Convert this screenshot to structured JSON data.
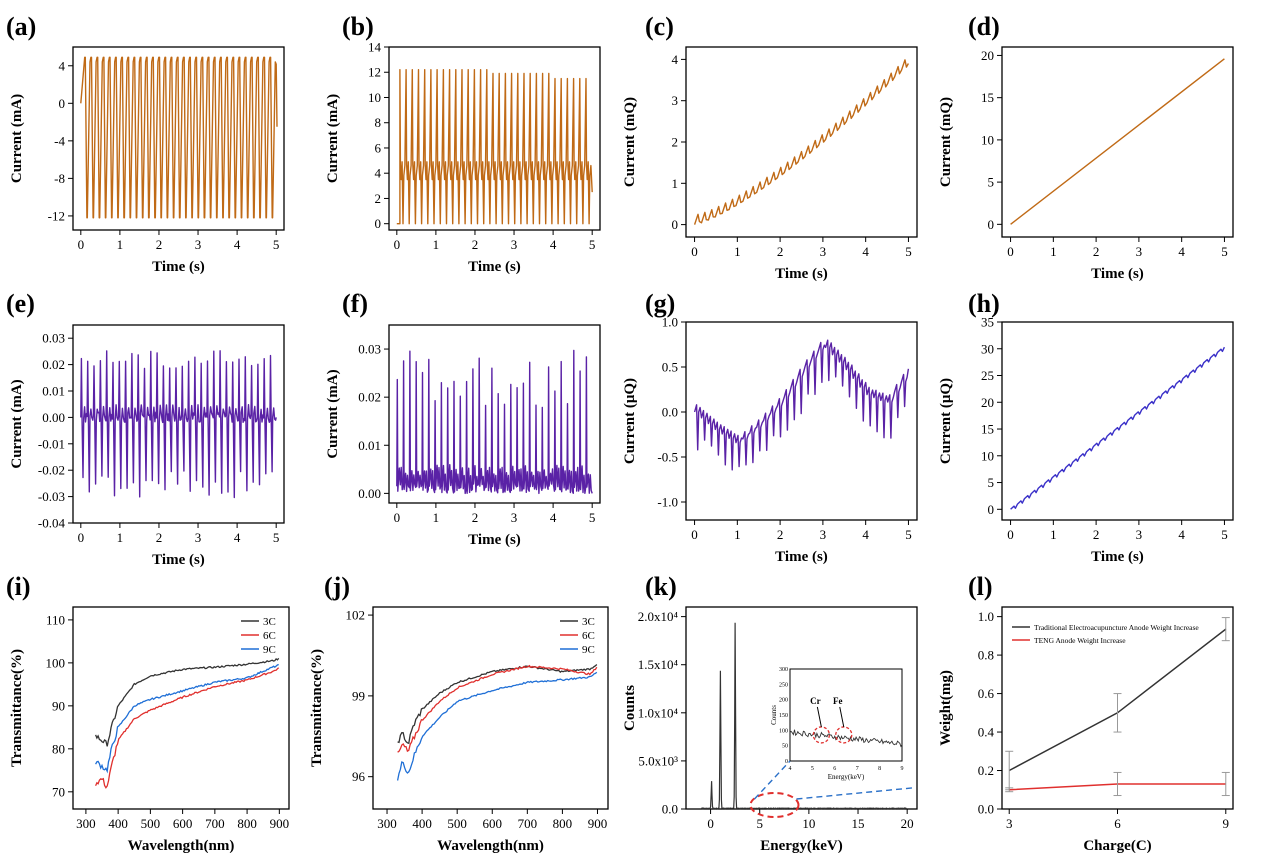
{
  "chart_data": [
    {
      "panel": "(a)",
      "type": "line",
      "style": "oscillation",
      "color": "#c06a16",
      "xlabel": "Time (s)",
      "ylabel": "Current (mA)",
      "xlim": [
        -0.2,
        5.2
      ],
      "ylim": [
        -13.5,
        6
      ],
      "xticks": [
        0,
        1,
        2,
        3,
        4,
        5
      ],
      "xtick_labels": [
        "0",
        "1",
        "2",
        "3",
        "4",
        "5"
      ],
      "yticks": [
        4,
        0,
        -4,
        -8,
        -12
      ],
      "ytick_labels": [
        "4",
        "0",
        "-4",
        "-8",
        "-12"
      ],
      "params": {
        "cycles": 31,
        "high": 4.9,
        "low": -12.2,
        "start": 0,
        "end": 5
      }
    },
    {
      "panel": "(b)",
      "type": "line",
      "style": "pulses",
      "color": "#c06a16",
      "xlabel": "Time (s)",
      "ylabel": "Current (mA)",
      "xlim": [
        -0.2,
        5.2
      ],
      "ylim": [
        -0.5,
        14
      ],
      "xticks": [
        0,
        1,
        2,
        3,
        4,
        5
      ],
      "xtick_labels": [
        "0",
        "1",
        "2",
        "3",
        "4",
        "5"
      ],
      "yticks": [
        0,
        2,
        4,
        6,
        8,
        10,
        12,
        14
      ],
      "ytick_labels": [
        "0",
        "2",
        "4",
        "6",
        "8",
        "10",
        "12",
        "14"
      ],
      "params": {
        "cycles": 31,
        "peak": 12.2,
        "base": 0,
        "mid": 4.3,
        "start": 0,
        "end": 5
      }
    },
    {
      "panel": "(c)",
      "type": "line",
      "style": "stair",
      "color": "#c06a16",
      "xlabel": "Time (s)",
      "ylabel": "Current (mQ)",
      "xlim": [
        -0.2,
        5.2
      ],
      "ylim": [
        -0.3,
        4.3
      ],
      "xticks": [
        0,
        1,
        2,
        3,
        4,
        5
      ],
      "xtick_labels": [
        "0",
        "1",
        "2",
        "3",
        "4",
        "5"
      ],
      "yticks": [
        0,
        1,
        2,
        3,
        4
      ],
      "ytick_labels": [
        "0",
        "1",
        "2",
        "3",
        "4"
      ],
      "params": {
        "cycles": 31,
        "start_value": 0,
        "end_value": 3.9,
        "ripple": 0.25,
        "curve": 1.3
      }
    },
    {
      "panel": "(d)",
      "type": "line",
      "style": "linear",
      "color": "#c06a16",
      "xlabel": "Time (s)",
      "ylabel": "Current (mQ)",
      "xlim": [
        -0.2,
        5.2
      ],
      "ylim": [
        -1.5,
        21
      ],
      "xticks": [
        0,
        1,
        2,
        3,
        4,
        5
      ],
      "xtick_labels": [
        "0",
        "1",
        "2",
        "3",
        "4",
        "5"
      ],
      "yticks": [
        0,
        5,
        10,
        15,
        20
      ],
      "ytick_labels": [
        "0",
        "5",
        "10",
        "15",
        "20"
      ],
      "params": {
        "start_value": 0,
        "end_value": 19.6
      }
    },
    {
      "panel": "(e)",
      "type": "line",
      "style": "spikes",
      "color": "#5a22a6",
      "xlabel": "Time (s)",
      "ylabel": "Current (mA)",
      "xlim": [
        -0.2,
        5.2
      ],
      "ylim": [
        -0.04,
        0.035
      ],
      "xticks": [
        0,
        1,
        2,
        3,
        4,
        5
      ],
      "xtick_labels": [
        "0",
        "1",
        "2",
        "3",
        "4",
        "5"
      ],
      "yticks": [
        0.03,
        0.02,
        0.01,
        0,
        -0.01,
        -0.02,
        -0.03,
        -0.04
      ],
      "ytick_labels": [
        "0.03",
        "0.02",
        "0.01",
        "0.00",
        "-0.01",
        "-0.02",
        "-0.03",
        "-0.04"
      ],
      "params": {
        "cycles": 31,
        "peak": 0.023,
        "trough": -0.029,
        "noise": 0.002
      }
    },
    {
      "panel": "(f)",
      "type": "line",
      "style": "peaks",
      "color": "#5a22a6",
      "xlabel": "Time (s)",
      "ylabel": "Current (mA)",
      "xlim": [
        -0.2,
        5.2
      ],
      "ylim": [
        -0.002,
        0.035
      ],
      "xticks": [
        0,
        1,
        2,
        3,
        4,
        5
      ],
      "xtick_labels": [
        "0",
        "1",
        "2",
        "3",
        "4",
        "5"
      ],
      "yticks": [
        0,
        0.01,
        0.02,
        0.03
      ],
      "ytick_labels": [
        "0.00",
        "0.01",
        "0.02",
        "0.03"
      ],
      "params": {
        "cycles": 31,
        "peak": 0.025,
        "noise": 0.002
      }
    },
    {
      "panel": "(g)",
      "type": "line",
      "style": "wander",
      "color": "#5a22a6",
      "xlabel": "Time (s)",
      "ylabel": "Current (μQ)",
      "xlim": [
        -0.2,
        5.2
      ],
      "ylim": [
        -1.2,
        1.0
      ],
      "xticks": [
        0,
        1,
        2,
        3,
        4,
        5
      ],
      "xtick_labels": [
        "0",
        "1",
        "2",
        "3",
        "4",
        "5"
      ],
      "yticks": [
        1.0,
        0.5,
        0,
        -0.5,
        -1.0
      ],
      "ytick_labels": [
        "1.0",
        "0.5",
        "0.0",
        "-0.5",
        "-1.0"
      ],
      "params": {
        "cycles": 31,
        "ripple": 0.35,
        "baseline_t": [
          0,
          0.5,
          1.0,
          1.5,
          2.0,
          2.5,
          3.0,
          3.5,
          4.0,
          4.5,
          5.0
        ],
        "baseline_v": [
          0.0,
          -0.2,
          -0.35,
          -0.15,
          0.1,
          0.45,
          0.75,
          0.5,
          0.2,
          0.1,
          0.45
        ]
      }
    },
    {
      "panel": "(h)",
      "type": "line",
      "style": "stair",
      "color": "#3a30c8",
      "xlabel": "Time (s)",
      "ylabel": "Current (μQ)",
      "xlim": [
        -0.2,
        5.2
      ],
      "ylim": [
        -2,
        35
      ],
      "xticks": [
        0,
        1,
        2,
        3,
        4,
        5
      ],
      "xtick_labels": [
        "0",
        "1",
        "2",
        "3",
        "4",
        "5"
      ],
      "yticks": [
        0,
        5,
        10,
        15,
        20,
        25,
        30,
        35
      ],
      "ytick_labels": [
        "0",
        "5",
        "10",
        "15",
        "20",
        "25",
        "30",
        "35"
      ],
      "params": {
        "cycles": 31,
        "start_value": 0,
        "end_value": 30.3,
        "ripple": 0.6,
        "curve": 1.0
      }
    },
    {
      "panel": "(i)",
      "type": "line",
      "style": "spectra",
      "xlabel": "Wavelength(nm)",
      "ylabel": "Transmittance(%)",
      "xlim": [
        260,
        930
      ],
      "ylim": [
        66,
        113
      ],
      "xticks": [
        300,
        400,
        500,
        600,
        700,
        800,
        900
      ],
      "xtick_labels": [
        "300",
        "400",
        "500",
        "600",
        "700",
        "800",
        "900"
      ],
      "yticks": [
        70,
        80,
        90,
        100,
        110
      ],
      "ytick_labels": [
        "70",
        "80",
        "90",
        "100",
        "110"
      ],
      "legend": [
        "3C",
        "6C",
        "9C"
      ],
      "series": [
        {
          "name": "3C",
          "color": "#333333",
          "x": [
            330,
            350,
            365,
            380,
            400,
            450,
            500,
            600,
            700,
            800,
            880,
            900
          ],
          "y": [
            83,
            82,
            81,
            85,
            90,
            95,
            97,
            98.5,
            99,
            99.7,
            100.5,
            101
          ]
        },
        {
          "name": "6C",
          "color": "#e0302e",
          "x": [
            330,
            350,
            365,
            380,
            400,
            450,
            500,
            600,
            700,
            800,
            880,
            900
          ],
          "y": [
            72,
            73,
            71,
            76,
            82,
            87,
            89,
            92,
            94.5,
            96,
            98,
            98.8
          ]
        },
        {
          "name": "9C",
          "color": "#1f6fd6",
          "x": [
            330,
            350,
            365,
            380,
            400,
            450,
            500,
            600,
            700,
            800,
            880,
            900
          ],
          "y": [
            77,
            76,
            75,
            80,
            85,
            90,
            91.5,
            93.5,
            95.5,
            96.5,
            99,
            99.5
          ]
        }
      ]
    },
    {
      "panel": "(j)",
      "type": "line",
      "style": "spectra",
      "xlabel": "Wavelength(nm)",
      "ylabel": "Transmittance(%)",
      "xlim": [
        260,
        930
      ],
      "ylim": [
        94.8,
        102.3
      ],
      "xticks": [
        300,
        400,
        500,
        600,
        700,
        800,
        900
      ],
      "xtick_labels": [
        "300",
        "400",
        "500",
        "600",
        "700",
        "800",
        "900"
      ],
      "yticks": [
        96,
        99,
        102
      ],
      "ytick_labels": [
        "96",
        "99",
        "102"
      ],
      "legend": [
        "3C",
        "6C",
        "9C"
      ],
      "series": [
        {
          "name": "3C",
          "color": "#333333",
          "x": [
            330,
            345,
            360,
            375,
            400,
            450,
            500,
            600,
            700,
            800,
            880,
            900
          ],
          "y": [
            97.3,
            97.6,
            97.2,
            97.9,
            98.5,
            99.1,
            99.5,
            99.9,
            100.1,
            99.9,
            100.0,
            100.2
          ]
        },
        {
          "name": "6C",
          "color": "#e0302e",
          "x": [
            330,
            345,
            360,
            375,
            400,
            450,
            500,
            600,
            700,
            800,
            880,
            900
          ],
          "y": [
            96.8,
            97.2,
            96.9,
            97.4,
            98.1,
            98.8,
            99.3,
            99.8,
            100.1,
            100.0,
            99.8,
            100.1
          ]
        },
        {
          "name": "9C",
          "color": "#1f6fd6",
          "x": [
            330,
            345,
            360,
            375,
            400,
            450,
            500,
            600,
            700,
            800,
            880,
            900
          ],
          "y": [
            95.9,
            96.6,
            96.1,
            96.7,
            97.5,
            98.2,
            98.8,
            99.2,
            99.5,
            99.6,
            99.7,
            99.9
          ]
        }
      ]
    },
    {
      "panel": "(k)",
      "type": "line",
      "style": "eds",
      "color": "#333333",
      "xlabel": "Energy(keV)",
      "ylabel": "Counts",
      "xlim": [
        -2.5,
        21
      ],
      "ylim": [
        0,
        21000
      ],
      "xticks": [
        0,
        5,
        10,
        15,
        20
      ],
      "xtick_labels": [
        "0",
        "5",
        "10",
        "15",
        "20"
      ],
      "yticks": [
        0,
        5000,
        10000,
        15000,
        20000
      ],
      "ytick_labels": [
        "0.0",
        "5.0x10³",
        "1.0x10⁴",
        "1.5x10⁴",
        "2.0x10⁴"
      ],
      "peaks": [
        {
          "energy": 0.1,
          "counts": 2800
        },
        {
          "energy": 1.0,
          "counts": 14300
        },
        {
          "energy": 2.5,
          "counts": 19300
        }
      ],
      "inset": {
        "xlabel": "Energy(keV)",
        "ylabel": "Counts",
        "xlim": [
          4,
          9
        ],
        "ylim": [
          0,
          300
        ],
        "xticks": [
          4,
          5,
          6,
          7,
          8,
          9
        ],
        "xtick_labels": [
          "4",
          "5",
          "6",
          "7",
          "8",
          "9"
        ],
        "yticks": [
          0,
          50,
          100,
          150,
          200,
          250,
          300
        ],
        "ytick_labels": [
          "0",
          "50",
          "100",
          "150",
          "200",
          "250",
          "300"
        ],
        "annotations": [
          {
            "label": "Cr",
            "energy": 5.4
          },
          {
            "label": "Fe",
            "energy": 6.4
          }
        ]
      }
    },
    {
      "panel": "(l)",
      "type": "line",
      "style": "errorbars",
      "xlabel": "Charge(C)",
      "ylabel": "Weight(mg)",
      "xlim": [
        2.8,
        9.2
      ],
      "ylim": [
        0,
        1.05
      ],
      "xticks": [
        3,
        6,
        9
      ],
      "xtick_labels": [
        "3",
        "6",
        "9"
      ],
      "yticks": [
        0,
        0.2,
        0.4,
        0.6,
        0.8,
        1.0
      ],
      "ytick_labels": [
        "0.0",
        "0.2",
        "0.4",
        "0.6",
        "0.8",
        "1.0"
      ],
      "series": [
        {
          "name": "Traditional Electroacupuncture Anode Weight Increase",
          "color": "#333333",
          "x": [
            3,
            6,
            9
          ],
          "y": [
            0.2,
            0.5,
            0.935
          ],
          "err": [
            0.1,
            0.1,
            0.06
          ]
        },
        {
          "name": "TENG Anode Weight Increase",
          "color": "#e0302e",
          "x": [
            3,
            6,
            9
          ],
          "y": [
            0.1,
            0.13,
            0.13
          ],
          "err": [
            0.01,
            0.06,
            0.06
          ]
        }
      ]
    }
  ]
}
